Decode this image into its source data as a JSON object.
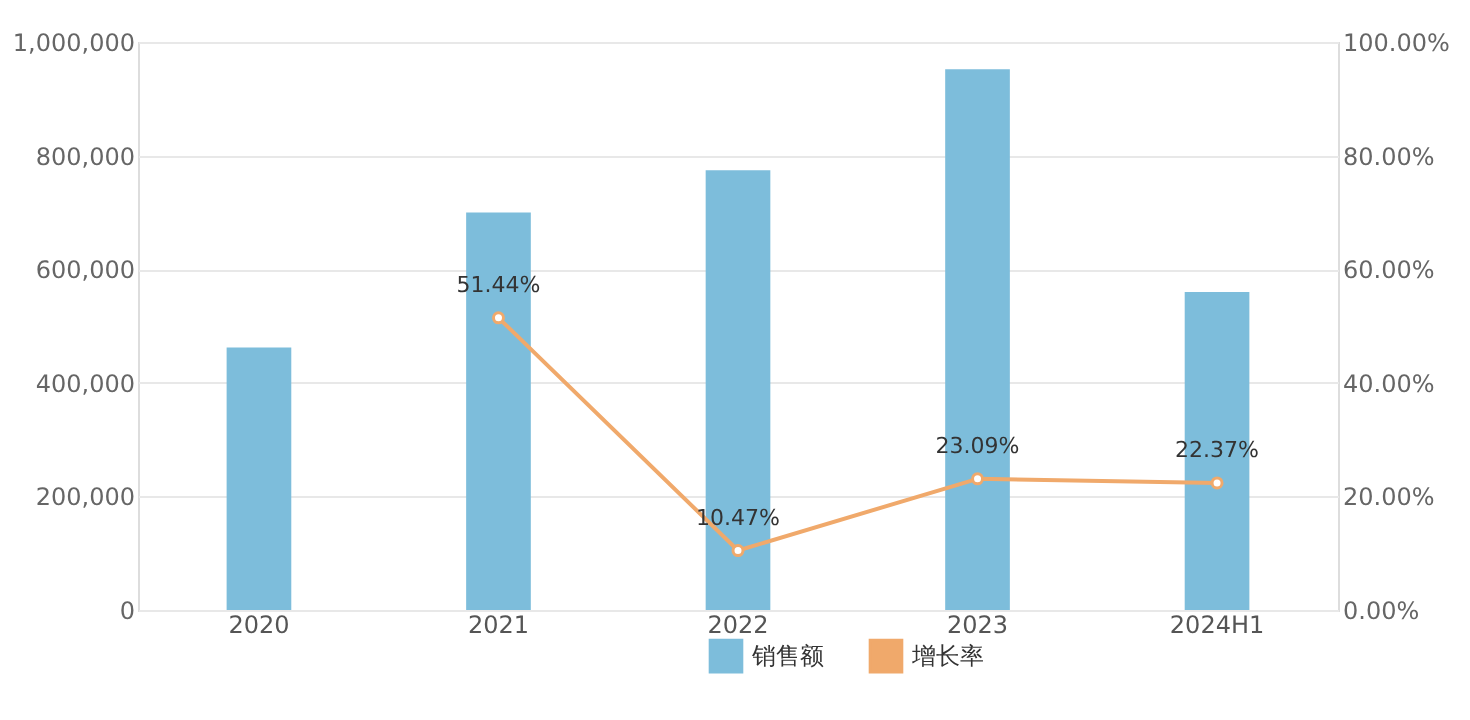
{
  "chart_data": {
    "type": "bar",
    "categories": [
      "2020",
      "2021",
      "2022",
      "2023",
      "2024H1"
    ],
    "series": [
      {
        "name": "销售额",
        "color": "#7dbddb",
        "values": [
          462000,
          700000,
          774000,
          952000,
          560000
        ]
      },
      {
        "name": "增长率",
        "type": "line",
        "axis": "y2",
        "color": "#f0a96b",
        "values": [
          null,
          51.44,
          10.47,
          23.09,
          22.37
        ],
        "value_labels": [
          null,
          "51.44%",
          "10.47%",
          "23.09%",
          "22.37%"
        ]
      }
    ],
    "ylim": [
      0,
      1000000
    ],
    "yticks": [
      {
        "value": 0,
        "label": "0"
      },
      {
        "value": 200000,
        "label": "200,000"
      },
      {
        "value": 400000,
        "label": "400,000"
      },
      {
        "value": 600000,
        "label": "600,000"
      },
      {
        "value": 800000,
        "label": "800,000"
      },
      {
        "value": 1000000,
        "label": "1,000,000"
      }
    ],
    "y2lim": [
      0,
      100
    ],
    "y2ticks": [
      {
        "value": 0,
        "label": "0.00%"
      },
      {
        "value": 20,
        "label": "20.00%"
      },
      {
        "value": 40,
        "label": "40.00%"
      },
      {
        "value": 60,
        "label": "60.00%"
      },
      {
        "value": 80,
        "label": "80.00%"
      },
      {
        "value": 100,
        "label": "100.00%"
      }
    ],
    "grid": "y",
    "legend": "bottom",
    "marker": "circle",
    "line_style": "solid"
  }
}
